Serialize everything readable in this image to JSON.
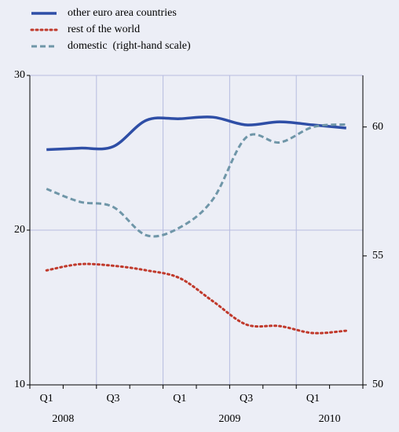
{
  "chart_data": {
    "type": "line",
    "categories": [
      "Q1",
      null,
      "Q3",
      null,
      "Q1",
      null,
      "Q3",
      null,
      "Q1",
      null
    ],
    "years": [
      "2008",
      "2009",
      "2010"
    ],
    "series": [
      {
        "name": "other euro area countries",
        "color": "#2e4ea6",
        "style": "solid",
        "axis": "y",
        "values": [
          25.2,
          25.3,
          25.4,
          27.1,
          27.2,
          27.3,
          26.8,
          27.0,
          26.8,
          26.6
        ]
      },
      {
        "name": "rest of the world",
        "color": "#c0392b",
        "style": "dotted",
        "axis": "y",
        "values": [
          17.4,
          17.8,
          17.7,
          17.4,
          16.9,
          15.4,
          13.9,
          13.8,
          13.35,
          13.5
        ]
      },
      {
        "name": "domestic  (right-hand scale)",
        "color": "#6f96a8",
        "style": "dashed",
        "axis": "y2",
        "values": [
          57.6,
          57.1,
          56.9,
          55.8,
          56.1,
          57.2,
          59.6,
          59.4,
          60.0,
          60.1
        ]
      }
    ],
    "ylim": [
      10,
      30
    ],
    "yticks": [
      10,
      20,
      30
    ],
    "y2lim": [
      50,
      62
    ],
    "y2ticks": [
      50,
      55,
      60
    ],
    "grid": true
  }
}
